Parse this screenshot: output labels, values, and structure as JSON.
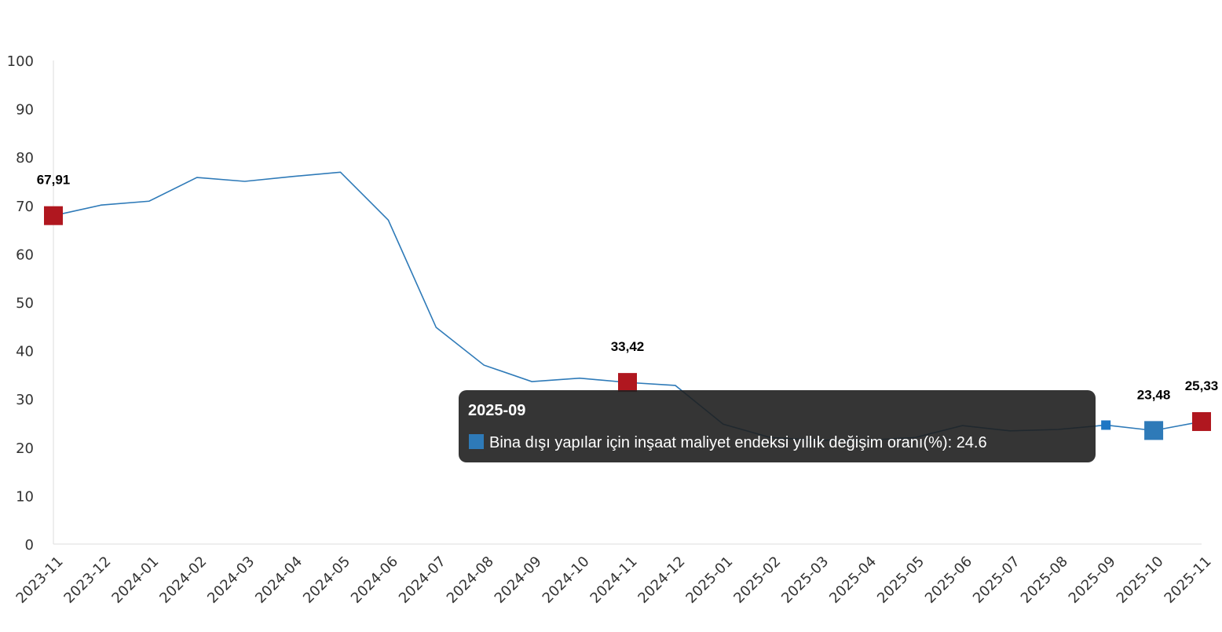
{
  "chart_data": {
    "type": "line",
    "categories": [
      "2023-11",
      "2023-12",
      "2024-01",
      "2024-02",
      "2024-03",
      "2024-04",
      "2024-05",
      "2024-06",
      "2024-07",
      "2024-08",
      "2024-09",
      "2024-10",
      "2024-11",
      "2024-12",
      "2025-01",
      "2025-02",
      "2025-03",
      "2025-04",
      "2025-05",
      "2025-06",
      "2025-07",
      "2025-08",
      "2025-09",
      "2025-10",
      "2025-11"
    ],
    "series": [
      {
        "name": "Bina dışı yapılar için inşaat maliyet endeksi yıllık değişim oranı(%)",
        "color": "#2e7ab8",
        "values": [
          67.91,
          70.1,
          70.9,
          75.8,
          75.0,
          76.0,
          76.9,
          67.0,
          44.8,
          37.0,
          33.6,
          34.3,
          33.42,
          32.8,
          24.8,
          22.0,
          21.5,
          21.5,
          22.0,
          24.5,
          23.4,
          23.7,
          24.6,
          23.48,
          25.33
        ],
        "value_labels": [
          "67,91",
          null,
          null,
          null,
          null,
          null,
          null,
          null,
          null,
          null,
          null,
          null,
          "33,42",
          null,
          null,
          null,
          null,
          null,
          null,
          null,
          null,
          null,
          null,
          "23,48",
          "25,33"
        ],
        "marker_colors": [
          "#b0171f",
          null,
          null,
          null,
          null,
          null,
          null,
          null,
          null,
          null,
          null,
          null,
          "#b0171f",
          null,
          null,
          null,
          null,
          null,
          null,
          null,
          null,
          null,
          "#1f77c4",
          "#2e7ab8",
          "#b0171f"
        ]
      }
    ],
    "ylim": [
      0,
      100
    ],
    "yticks": [
      0,
      10,
      20,
      30,
      40,
      50,
      60,
      70,
      80,
      90,
      100
    ],
    "grid": false,
    "tooltip": {
      "title": "2025-09",
      "text": "Bina dışı yapılar için inşaat maliyet endeksi yıllık değişim oranı(%): 24.6"
    }
  }
}
